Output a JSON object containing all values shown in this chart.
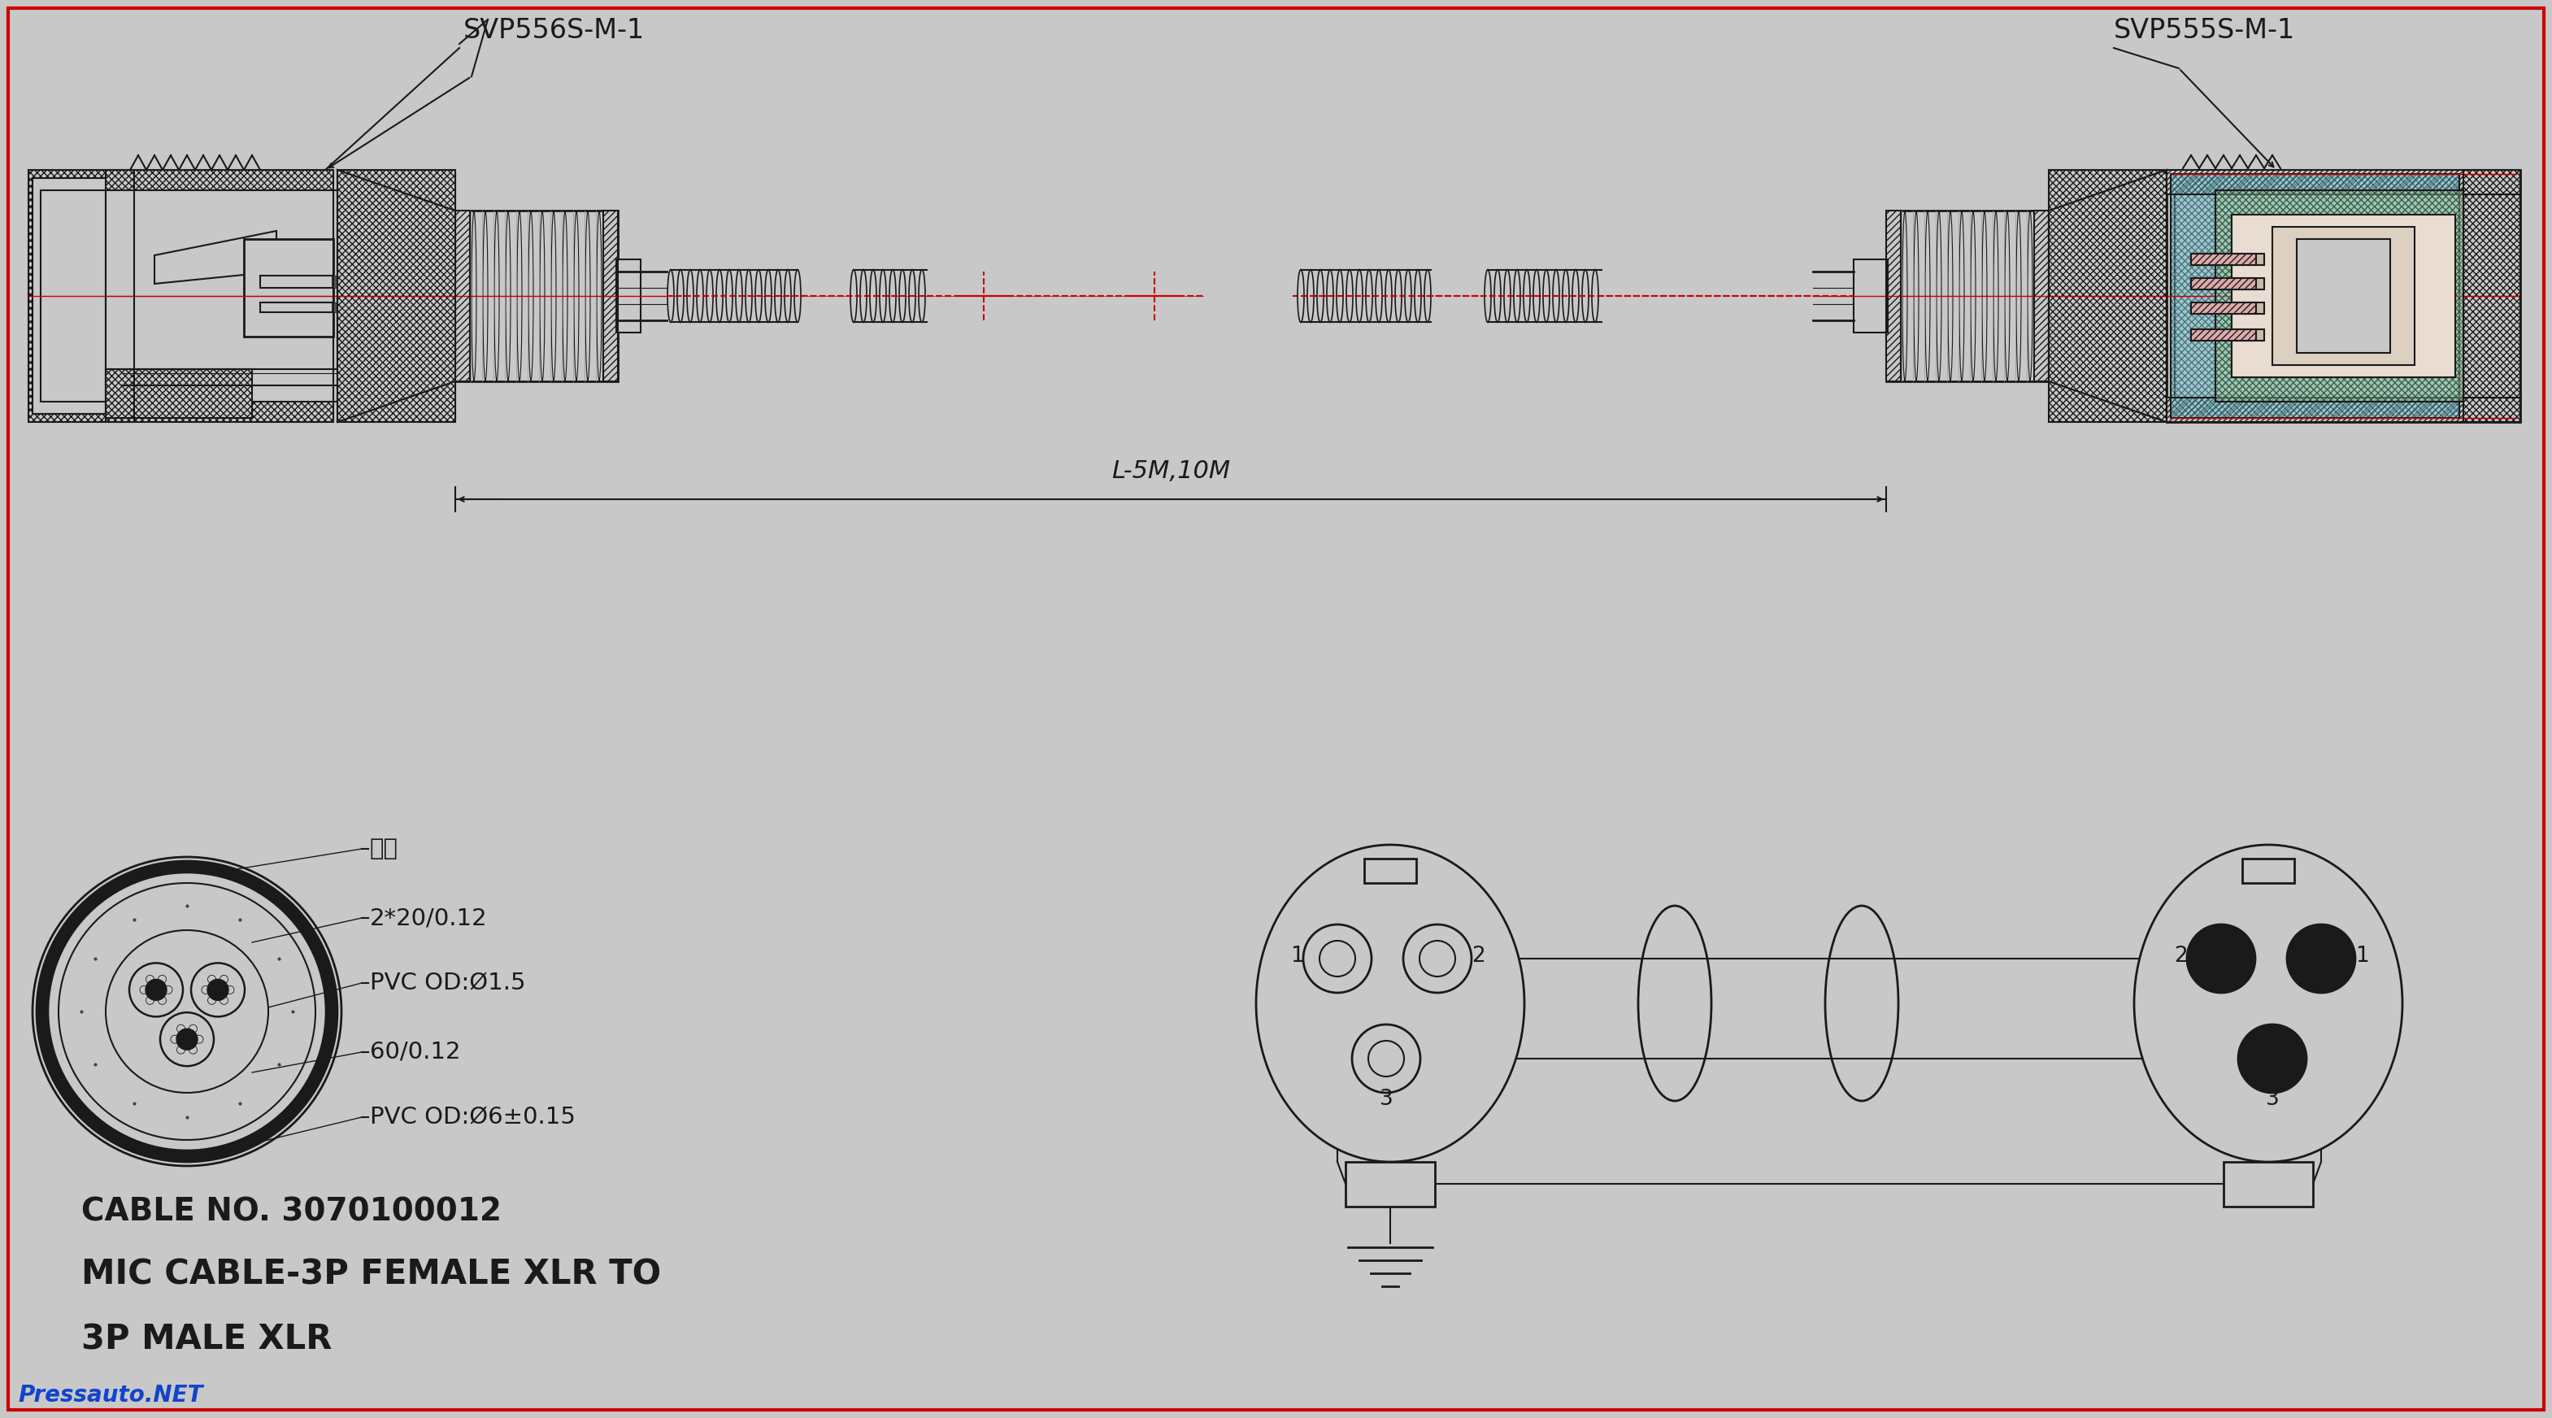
{
  "bg_color": "#c8c8c8",
  "line_color": "#1a1a1a",
  "red_color": "#cc0000",
  "cyan_color": "#66ccdd",
  "green_color": "#99cc99",
  "pink_color": "#ddaaaa",
  "border_color": "#cc0000",
  "cable_no": "CABLE NO. 3070100012",
  "title_line1": "MIC CABLE-3P FEMALE XLR TO",
  "title_line2": "3P MALE XLR",
  "label_left": "SVP556S-M-1",
  "label_right": "SVP555S-M-1",
  "dim_label": "L-5M,10M",
  "labels_cross": [
    "棉线",
    "2*20/0.12",
    "PVC OD:Ø1.5",
    "60/0.12",
    "PVC OD:Ø6±0.15"
  ],
  "watermark": "Pressauto.NET",
  "lw": 1.5,
  "lw_thick": 3.0,
  "lw_thin": 0.8,
  "hatch_lw": 0.6
}
